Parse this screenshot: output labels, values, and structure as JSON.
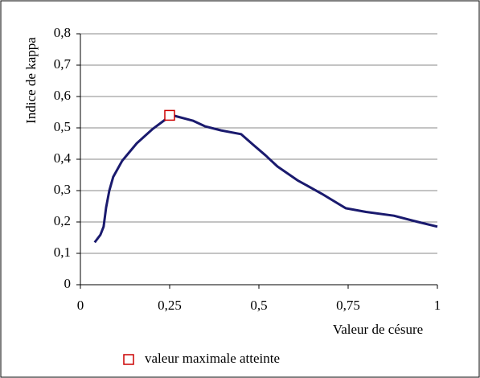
{
  "chart_data": {
    "type": "line",
    "xlabel": "Valeur de césure",
    "ylabel": "Indice de kappa",
    "xlim": [
      0,
      1
    ],
    "ylim": [
      0,
      0.8
    ],
    "xticks": [
      0,
      {
        "value": 0.25,
        "label": "0,25"
      },
      {
        "value": 0.5,
        "label": "0,5"
      },
      {
        "value": 0.75,
        "label": "0,75"
      },
      1
    ],
    "yticks": [
      0,
      {
        "value": 0.1,
        "label": "0,1"
      },
      {
        "value": 0.2,
        "label": "0,2"
      },
      {
        "value": 0.3,
        "label": "0,3"
      },
      {
        "value": 0.4,
        "label": "0,4"
      },
      {
        "value": 0.5,
        "label": "0,5"
      },
      {
        "value": 0.6,
        "label": "0,6"
      },
      {
        "value": 0.7,
        "label": "0,7"
      },
      {
        "value": 0.8,
        "label": "0,8"
      }
    ],
    "grid": true,
    "legend": "bottom",
    "series": [
      {
        "color": "#1a1a6e",
        "x": [
          0.04,
          0.056,
          0.065,
          0.072,
          0.081,
          0.092,
          0.117,
          0.158,
          0.203,
          0.255,
          0.315,
          0.349,
          0.394,
          0.45,
          0.484,
          0.518,
          0.552,
          0.608,
          0.676,
          0.743,
          0.8,
          0.878,
          0.946,
          1.0
        ],
        "values": [
          0.135,
          0.159,
          0.185,
          0.246,
          0.3,
          0.344,
          0.395,
          0.451,
          0.497,
          0.541,
          0.523,
          0.505,
          0.492,
          0.48,
          0.446,
          0.413,
          0.377,
          0.333,
          0.29,
          0.244,
          0.232,
          0.22,
          0.2,
          0.185
        ]
      },
      {
        "name": "valeur maximale atteinte",
        "color": "#cc0000",
        "marker": "square",
        "x": [
          0.25
        ],
        "values": [
          0.54
        ]
      }
    ]
  }
}
